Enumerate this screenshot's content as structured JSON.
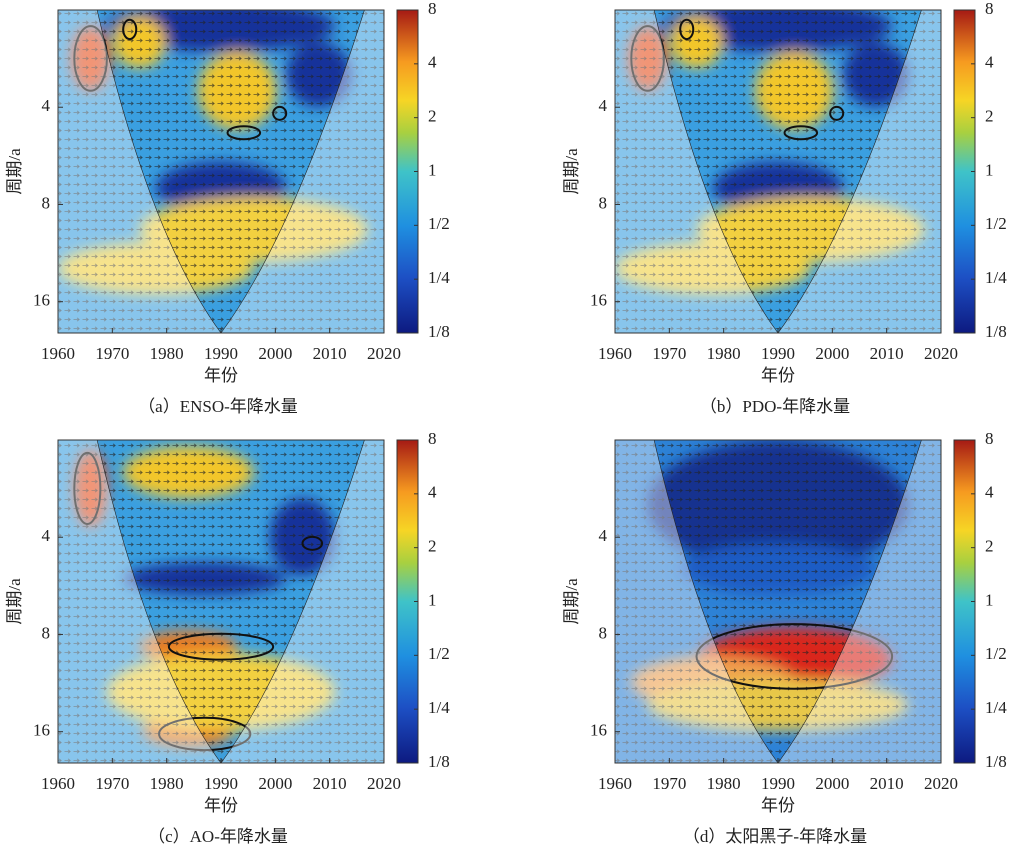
{
  "chart_data": [
    {
      "type": "heatmap",
      "title": "（a）ENSO-年降水量",
      "xlabel": "年份",
      "ylabel": "周期/a",
      "xlim": [
        1960,
        2020
      ],
      "xticks": [
        1960,
        1970,
        1980,
        1990,
        2000,
        2010,
        2020
      ],
      "ylim": [
        2,
        20
      ],
      "yticks": [
        4,
        8,
        16
      ],
      "y_log_scale": true,
      "y_inverted": true,
      "clim": [
        0.125,
        8
      ],
      "cticks": [
        {
          "value": 0.125,
          "label": "1/8"
        },
        {
          "value": 0.25,
          "label": "1/4"
        },
        {
          "value": 0.5,
          "label": "1/2"
        },
        1,
        2,
        4,
        8
      ],
      "c_log_scale": true
    },
    {
      "type": "heatmap",
      "title": "（b）PDO-年降水量",
      "xlabel": "年份",
      "ylabel": "周期/a",
      "xlim": [
        1960,
        2020
      ],
      "xticks": [
        1960,
        1970,
        1980,
        1990,
        2000,
        2010,
        2020
      ],
      "ylim": [
        2,
        20
      ],
      "yticks": [
        4,
        8,
        16
      ],
      "y_log_scale": true,
      "y_inverted": true,
      "clim": [
        0.125,
        8
      ],
      "cticks": [
        {
          "value": 0.125,
          "label": "1/8"
        },
        {
          "value": 0.25,
          "label": "1/4"
        },
        {
          "value": 0.5,
          "label": "1/2"
        },
        1,
        2,
        4,
        8
      ],
      "c_log_scale": true
    },
    {
      "type": "heatmap",
      "title": "（c）AO-年降水量",
      "xlabel": "年份",
      "ylabel": "周期/a",
      "xlim": [
        1960,
        2020
      ],
      "xticks": [
        1960,
        1970,
        1980,
        1990,
        2000,
        2010,
        2020
      ],
      "ylim": [
        2,
        20
      ],
      "yticks": [
        4,
        8,
        16
      ],
      "y_log_scale": true,
      "y_inverted": true,
      "clim": [
        0.125,
        8
      ],
      "cticks": [
        {
          "value": 0.125,
          "label": "1/8"
        },
        {
          "value": 0.25,
          "label": "1/4"
        },
        {
          "value": 0.5,
          "label": "1/2"
        },
        1,
        2,
        4,
        8
      ],
      "c_log_scale": true
    },
    {
      "type": "heatmap",
      "title": "（d）太阳黑子-年降水量",
      "xlabel": "年份",
      "ylabel": "周期/a",
      "xlim": [
        1960,
        2020
      ],
      "xticks": [
        1960,
        1970,
        1980,
        1990,
        2000,
        2010,
        2020
      ],
      "ylim": [
        2,
        20
      ],
      "yticks": [
        4,
        8,
        16
      ],
      "y_log_scale": true,
      "y_inverted": true,
      "clim": [
        0.125,
        8
      ],
      "cticks": [
        {
          "value": 0.125,
          "label": "1/8"
        },
        {
          "value": 0.25,
          "label": "1/4"
        },
        {
          "value": 0.5,
          "label": "1/2"
        },
        1,
        2,
        4,
        8
      ],
      "c_log_scale": true
    }
  ]
}
